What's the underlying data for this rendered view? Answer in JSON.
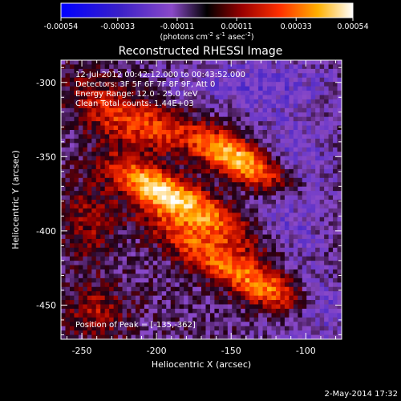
{
  "colorbar": {
    "ticks": [
      "-0.00054",
      "-0.00033",
      "-0.00011",
      "0.00011",
      "0.00033",
      "0.00054"
    ],
    "unit_text": "(photons cm",
    "unit_exp1": "-2",
    "unit_mid": " s",
    "unit_exp2": "-1",
    "unit_mid2": " asec",
    "unit_exp3": "-2",
    "unit_end": ")",
    "range": [
      -0.00054,
      0.00054
    ]
  },
  "title": "Reconstructed RHESSI Image",
  "info_lines": [
    "12-Jul-2012 00:42:12.000 to 00:43:52.000",
    "Detectors: 3F 5F 6F 7F 8F 9F, Att 0",
    "Energy Range: 12.0 - 25.0 keV",
    "Clean     Total counts: 1.44E+03"
  ],
  "peak_label": "Position of Peak = [-135,-362]",
  "footer_date": "2-May-2014 17:32",
  "chart_data": {
    "type": "heatmap",
    "title": "Reconstructed RHESSI Image",
    "xlabel": "Heliocentric X (arcsec)",
    "ylabel": "Heliocentric Y (arcsec)",
    "xlim": [
      -264,
      -76
    ],
    "ylim": [
      -473,
      -285
    ],
    "xticks": [
      -250,
      -200,
      -150,
      -100
    ],
    "yticks": [
      -300,
      -350,
      -400,
      -450
    ],
    "xtick_labels": [
      "-250",
      "-200",
      "-150",
      "-100"
    ],
    "ytick_labels": [
      "-300",
      "-350",
      "-400",
      "-450"
    ],
    "peak": [
      -135,
      -362
    ],
    "colormap": "blue-purple-red-yellow-white",
    "sources": [
      {
        "x": -145,
        "y": -352,
        "amp": 1.0,
        "sx": 28,
        "sy": 9,
        "angle": -28
      },
      {
        "x": -175,
        "y": -385,
        "amp": 0.75,
        "sx": 34,
        "sy": 10,
        "angle": -30
      },
      {
        "x": -205,
        "y": -370,
        "amp": 0.55,
        "sx": 20,
        "sy": 8,
        "angle": -30
      },
      {
        "x": -160,
        "y": -420,
        "amp": 0.62,
        "sx": 38,
        "sy": 9,
        "angle": -32
      },
      {
        "x": -230,
        "y": -320,
        "amp": 0.5,
        "sx": 22,
        "sy": 12,
        "angle": -35
      },
      {
        "x": -200,
        "y": -330,
        "amp": 0.35,
        "sx": 14,
        "sy": 10,
        "angle": -30
      },
      {
        "x": -120,
        "y": -440,
        "amp": 0.5,
        "sx": 18,
        "sy": 9,
        "angle": -30
      },
      {
        "x": -245,
        "y": -395,
        "amp": 0.3,
        "sx": 12,
        "sy": 20,
        "angle": 0
      },
      {
        "x": -240,
        "y": -455,
        "amp": 0.35,
        "sx": 14,
        "sy": 12,
        "angle": 0
      },
      {
        "x": -110,
        "y": -370,
        "amp": -0.3,
        "sx": 20,
        "sy": 40,
        "angle": 0
      },
      {
        "x": -140,
        "y": -300,
        "amp": -0.25,
        "sx": 40,
        "sy": 12,
        "angle": 0
      },
      {
        "x": -95,
        "y": -455,
        "amp": -0.35,
        "sx": 18,
        "sy": 14,
        "angle": 0
      }
    ]
  }
}
